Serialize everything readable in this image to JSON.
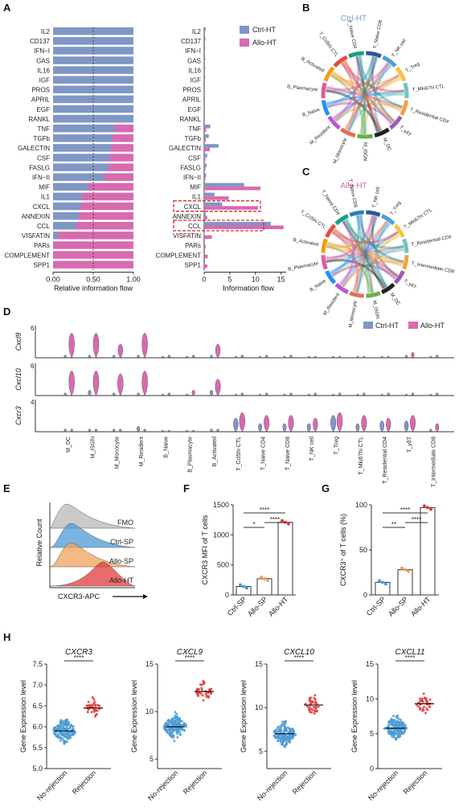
{
  "colors": {
    "ctrl": "#8097c6",
    "allo": "#d86ab0",
    "teal": "#4c9bd6",
    "red": "#e03b3b",
    "orange": "#f0a35c",
    "gray": "#b9b9b9"
  },
  "panels": {
    "A": "A",
    "B": "B",
    "C": "C",
    "D": "D",
    "E": "E",
    "F": "F",
    "G": "G",
    "H": "H"
  },
  "legend_A": {
    "ctrl": "Ctrl-HT",
    "allo": "Allo-HT"
  },
  "legend_D": {
    "ctrl": "Ctrl-HT",
    "allo": "Allo-HT"
  },
  "chord": {
    "B_title": "Ctrl-HT",
    "C_title": "Allo-HT",
    "B_labels": [
      "T_Naive CD8",
      "T_NK cell",
      "T_Treg",
      "T_Mki67hi CTL",
      "T_Residential CD4",
      "T_γδT",
      "M_DC",
      "M_ISGhi",
      "M_Monocyte",
      "M_Resident",
      "B_Naive",
      "B_Plasmacyte",
      "B_Activated",
      "T_Ccl5hi CTL",
      "T_Naive CD4"
    ],
    "C_labels": [
      "T_NK cell",
      "T_Treg",
      "T_Mki67hi CTL",
      "T_Residential CD4",
      "T_Intermediate CD8",
      "T_γδT",
      "M_DC",
      "M_ISGhi",
      "M_Monocyte",
      "M_Resident",
      "B_Naive",
      "B_Plasmacyte",
      "B_Activated",
      "T_Ccl5hi CTL",
      "T_Naive CD4",
      "T_Naive CD8"
    ]
  },
  "chart_data": [
    {
      "id": "A-left",
      "type": "bar",
      "stacked": true,
      "xlabel": "Relative information flow",
      "xlim": [
        0,
        1
      ],
      "xticks": [
        "0.00",
        "0.50",
        "1.00"
      ],
      "categories": [
        "IL2",
        "CD137",
        "IFN−I",
        "GAS",
        "IL16",
        "IGF",
        "PROS",
        "APRIL",
        "EGF",
        "RANKL",
        "TNF",
        "TGFb",
        "GALECTIN",
        "CSF",
        "FASLG",
        "IFN−II",
        "MIF",
        "IL1",
        "CXCL",
        "ANNEXIN",
        "CCL",
        "VISFATIN",
        "PARs",
        "COMPLEMENT",
        "SPP1"
      ],
      "series": [
        {
          "name": "Ctrl-HT",
          "values": [
            1,
            1,
            1,
            1,
            1,
            1,
            1,
            1,
            1,
            1,
            0.77,
            0.74,
            0.72,
            0.71,
            0.69,
            0.64,
            0.44,
            0.36,
            0.35,
            0.32,
            0.29,
            0.06,
            0,
            0,
            0
          ]
        },
        {
          "name": "Allo-HT",
          "values": [
            0,
            0,
            0,
            0,
            0,
            0,
            0,
            0,
            0,
            0,
            0.23,
            0.26,
            0.28,
            0.29,
            0.31,
            0.36,
            0.56,
            0.64,
            0.65,
            0.68,
            0.71,
            0.94,
            1,
            1,
            1
          ]
        }
      ]
    },
    {
      "id": "A-right",
      "type": "bar",
      "orientation": "horizontal",
      "xlabel": "Information flow",
      "xlim": [
        0,
        16
      ],
      "xticks": [
        "0",
        "5",
        "10",
        "15"
      ],
      "categories": [
        "IL2",
        "CD137",
        "IFN−I",
        "GAS",
        "IL16",
        "IGF",
        "PROS",
        "APRIL",
        "EGF",
        "RANKL",
        "TNF",
        "TGFb",
        "GALECTIN",
        "CSF",
        "FASLG",
        "IFN−II",
        "MIF",
        "IL1",
        "CXCL",
        "ANNEXIN",
        "CCL",
        "VISFATIN",
        "PARs",
        "COMPLEMENT",
        "SPP1"
      ],
      "highlighted": [
        "CXCL",
        "CCL"
      ],
      "series": [
        {
          "name": "Ctrl-HT",
          "values": [
            0.3,
            0.25,
            0.2,
            0.2,
            0.2,
            0.2,
            0.15,
            0.15,
            0.15,
            0.15,
            1.2,
            0.9,
            2.8,
            0.6,
            0.5,
            0.4,
            7.8,
            2,
            3.5,
            0.3,
            13,
            0.1,
            0,
            0,
            0
          ]
        },
        {
          "name": "Allo-HT",
          "values": [
            0,
            0,
            0,
            0,
            0,
            0,
            0,
            0,
            0,
            0,
            0.4,
            0.3,
            1.1,
            0.25,
            0.25,
            0.25,
            11,
            4.8,
            10.5,
            0.6,
            15.5,
            1.5,
            0.3,
            0.7,
            0.6
          ]
        }
      ]
    },
    {
      "id": "D",
      "type": "violin",
      "genes": [
        "Cxcl9",
        "Cxcl10",
        "Cxcr3"
      ],
      "ymax": [
        "6",
        "6",
        "4"
      ],
      "categories": [
        "M_DC",
        "M_ISGhi",
        "M_Monocyte",
        "M_Resident",
        "B_Naive",
        "B_Plasmacyte",
        "B_Activated",
        "T_Ccl5hi CTL",
        "T_Naive CD4",
        "T_Naive CD8",
        "T_NK cell",
        "T_Treg",
        "T_Mki67hi CTL",
        "T_Residential CD4",
        "T_γδT",
        "T_Intermediate CD8"
      ],
      "series": [
        {
          "name": "Ctrl-HT",
          "gene": "Cxcl9",
          "values": [
            0.1,
            0.1,
            0.1,
            0.1,
            0,
            0,
            0.1,
            0,
            0,
            0,
            0,
            0,
            0,
            0,
            0.1,
            0
          ]
        },
        {
          "name": "Allo-HT",
          "gene": "Cxcl9",
          "values": [
            0.9,
            0.9,
            0.5,
            0.9,
            0.1,
            0.1,
            0.5,
            0.1,
            0.1,
            0.1,
            0,
            0,
            0,
            0,
            0.2,
            0.1
          ]
        },
        {
          "name": "Ctrl-HT",
          "gene": "Cxcl10",
          "values": [
            0.1,
            0.2,
            0.1,
            0.1,
            0,
            0,
            0.2,
            0,
            0,
            0,
            0,
            0,
            0,
            0,
            0,
            0
          ]
        },
        {
          "name": "Allo-HT",
          "gene": "Cxcl10",
          "values": [
            0.9,
            0.9,
            0.8,
            0.9,
            0.1,
            0.2,
            0.6,
            0.1,
            0.1,
            0.1,
            0.1,
            0.1,
            0.1,
            0.1,
            0.1,
            0.1
          ]
        },
        {
          "name": "Ctrl-HT",
          "gene": "Cxcr3",
          "values": [
            0.1,
            0.1,
            0.1,
            0.2,
            0,
            0,
            0.1,
            0.5,
            0.3,
            0.3,
            0.3,
            0.6,
            0.3,
            0.4,
            0.4,
            0.1
          ]
        },
        {
          "name": "Allo-HT",
          "gene": "Cxcr3",
          "values": [
            0.1,
            0.1,
            0.1,
            0.1,
            0,
            0,
            0.1,
            0.7,
            0.6,
            0.6,
            0.5,
            0.7,
            0.6,
            0.5,
            0.6,
            0.3
          ]
        }
      ]
    },
    {
      "id": "E",
      "type": "area",
      "title": "",
      "xlabel": "CXCR3-APC",
      "ylabel": "Relative Count",
      "series": [
        {
          "name": "FMO"
        },
        {
          "name": "Ctrl-SP"
        },
        {
          "name": "Allo-SP"
        },
        {
          "name": "Allo-HT"
        }
      ]
    },
    {
      "id": "F",
      "type": "bar",
      "ylabel": "CXCR3 MFI of T cells",
      "categories": [
        "Ctrl-SP",
        "Allo-SP",
        "Allo-HT"
      ],
      "values": [
        140,
        270,
        1210
      ],
      "ylim": [
        0,
        1500
      ],
      "yticks": [
        "0",
        "500",
        "1000",
        "1500"
      ],
      "significance": [
        "*",
        "****",
        "****"
      ]
    },
    {
      "id": "G",
      "type": "bar",
      "ylabel": "CXCR3⁺ of T cells (%)",
      "categories": [
        "Ctrl-SP",
        "Allo-SP",
        "Allo-HT"
      ],
      "values": [
        14,
        28,
        97
      ],
      "ylim": [
        0,
        100
      ],
      "yticks": [
        "0",
        "50",
        "100"
      ],
      "significance": [
        "**",
        "****",
        "****"
      ]
    },
    {
      "id": "H1",
      "type": "scatter",
      "title": "CXCR3",
      "ylabel": "Gene Expression level",
      "categories": [
        "No-rejection",
        "Rejection"
      ],
      "ylim": [
        5.0,
        7.5
      ],
      "yticks": [
        "5.0",
        "5.5",
        "6.0",
        "6.5",
        "7.0",
        "7.5"
      ],
      "mean": [
        5.9,
        6.45
      ],
      "significance": "****"
    },
    {
      "id": "H2",
      "type": "scatter",
      "title": "CXCL9",
      "ylabel": "Gene Expression level",
      "categories": [
        "No-rejection",
        "Rejection"
      ],
      "ylim": [
        4,
        15
      ],
      "yticks": [
        "5",
        "10",
        "15"
      ],
      "mean": [
        8.4,
        12.1
      ],
      "significance": "****"
    },
    {
      "id": "H3",
      "type": "scatter",
      "title": "CXCL10",
      "ylabel": "Gene Expression level",
      "categories": [
        "No-rejection",
        "Rejection"
      ],
      "ylim": [
        3,
        15
      ],
      "yticks": [
        "5",
        "10",
        "15"
      ],
      "mean": [
        7.0,
        10.3
      ],
      "significance": "****"
    },
    {
      "id": "H4",
      "type": "scatter",
      "title": "CXCL11",
      "ylabel": "Gene Expression level",
      "categories": [
        "No-rejection",
        "Rejection"
      ],
      "ylim": [
        0,
        15
      ],
      "yticks": [
        "0",
        "5",
        "10",
        "15"
      ],
      "mean": [
        5.8,
        9.3
      ],
      "significance": "****"
    }
  ]
}
